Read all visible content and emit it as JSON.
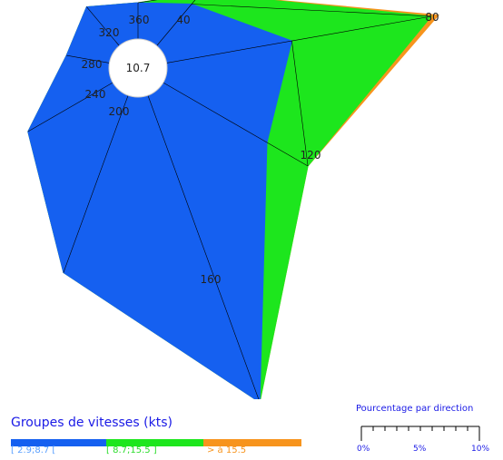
{
  "chart_data": {
    "type": "polar-stacked-area",
    "directions": [
      "360",
      "40",
      "80",
      "120",
      "160",
      "200",
      "240",
      "280",
      "320"
    ],
    "calm_value": "10.7",
    "series": [
      {
        "name": "[ 2.9;8.7 [",
        "color": "#1560f0",
        "values": [
          1.0,
          1.5,
          3.5,
          3.3,
          9.0,
          5.2,
          2.7,
          1.2,
          1.4
        ]
      },
      {
        "name": "[ 8.7;15.5 ]",
        "color": "#1de61d",
        "values": [
          1.0,
          1.9,
          7.4,
          4.6,
          9.0,
          5.2,
          2.7,
          1.2,
          1.4
        ]
      },
      {
        "name": "> à 15.5",
        "color": "#f7941d",
        "values": [
          1.0,
          1.9,
          7.6,
          4.6,
          9.0,
          5.2,
          2.7,
          1.2,
          1.4
        ]
      }
    ],
    "legend_title": "Groupes de vitesses (kts)",
    "scale": {
      "title": "Pourcentage par direction",
      "ticks": [
        "0%",
        "5%",
        "10%"
      ],
      "max_percent": 10
    }
  }
}
